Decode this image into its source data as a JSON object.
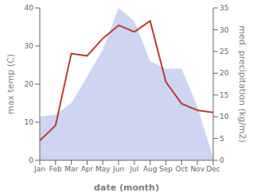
{
  "chart_data": {
    "type": "area",
    "xlabel": "date (month)",
    "ylabel": "max temp (C)",
    "y2label": "med. precipitation (kg/m2)",
    "categories": [
      "Jan",
      "Feb",
      "Mar",
      "Apr",
      "May",
      "Jun",
      "Jul",
      "Aug",
      "Sep",
      "Oct",
      "Nov",
      "Dec"
    ],
    "series": [
      {
        "type": "area",
        "color": "#c5cef0",
        "values": [
          11.5,
          12.0,
          15.0,
          22.0,
          29.0,
          40.0,
          36.5,
          26.0,
          24.0,
          24.0,
          14.0,
          0.5
        ]
      },
      {
        "type": "line",
        "color": "#c0392b",
        "axis": "y2",
        "values": [
          4.5,
          8.0,
          24.5,
          24.0,
          28.0,
          31.0,
          29.5,
          32.0,
          18.0,
          13.0,
          11.5,
          11.0
        ]
      }
    ],
    "ylim": [
      0,
      40
    ],
    "yticks": [
      0,
      10,
      20,
      30,
      40
    ],
    "y2lim": [
      0,
      35
    ],
    "y2ticks": [
      0,
      5,
      10,
      15,
      20,
      25,
      30,
      35
    ],
    "grid": false
  }
}
